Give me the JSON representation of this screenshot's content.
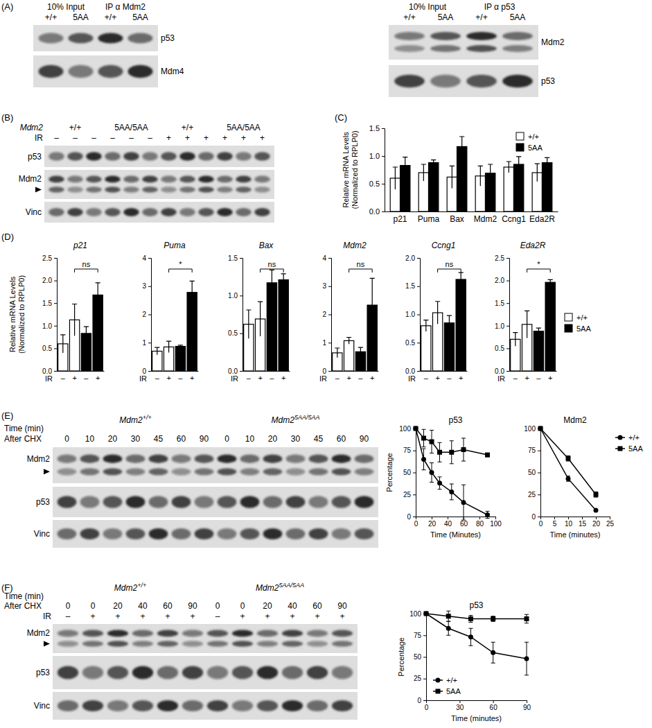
{
  "panel_labels": [
    "(A)",
    "(B)",
    "(C)",
    "(D)",
    "(E)",
    "(F)"
  ],
  "blots": [
    {
      "groups": [
        {
          "label": "10% Input",
          "lanes": [
            "+/+",
            "5AA"
          ]
        },
        {
          "label": "IP α Mdm2",
          "lanes": [
            "+/+",
            "5AA"
          ]
        }
      ],
      "rows": [
        "p53",
        "Mdm4"
      ]
    },
    {
      "groups": [
        {
          "label": "10% Input",
          "lanes": [
            "+/+",
            "5AA"
          ]
        },
        {
          "label": "IP α p53",
          "lanes": [
            "+/+",
            "5AA"
          ]
        }
      ],
      "rows": [
        "Mdm2",
        "p53"
      ]
    },
    {
      "title": "Mdm2",
      "groups": [
        {
          "label": "+/+",
          "lanes": [
            "–",
            "–",
            "–"
          ]
        },
        {
          "label": "5AA/5AA",
          "lanes": [
            "–",
            "–",
            "–"
          ]
        },
        {
          "label": "+/+",
          "lanes": [
            "+",
            "+",
            "+"
          ]
        },
        {
          "label": "5AA/5AA",
          "lanes": [
            "+",
            "+",
            "+"
          ]
        }
      ],
      "lane_label": "IR",
      "rows": [
        "p53",
        "Mdm2",
        "Vinc"
      ]
    },
    {
      "groups": [
        {
          "label": "Mdm2",
          "superscript": "+/+",
          "lanes": [
            "0",
            "10",
            "20",
            "30",
            "45",
            "60",
            "90"
          ]
        },
        {
          "label": "Mdm2",
          "superscript": "5AA/5AA",
          "lanes": [
            "0",
            "10",
            "20",
            "30",
            "45",
            "60",
            "90"
          ]
        }
      ],
      "lane_label": [
        "Time (min)",
        "After CHX"
      ],
      "rows": [
        "Mdm2",
        "p53",
        "Vinc"
      ]
    },
    {
      "groups": [
        {
          "label": "Mdm2",
          "superscript": "+/+",
          "lanes": [
            "0",
            "0",
            "20",
            "40",
            "60",
            "90"
          ],
          "ir": [
            "–",
            "+",
            "+",
            "+",
            "+",
            "+"
          ]
        },
        {
          "label": "Mdm2",
          "superscript": "5AA/5AA",
          "lanes": [
            "0",
            "0",
            "20",
            "40",
            "60",
            "90"
          ],
          "ir": [
            "–",
            "+",
            "+",
            "+",
            "+",
            "+"
          ]
        }
      ],
      "lane_label": [
        "Time (min)",
        "After CHX"
      ],
      "ir_label": "IR",
      "rows": [
        "Mdm2",
        "p53",
        "Vinc"
      ]
    }
  ],
  "chart_data": [
    {
      "type": "bar",
      "categories": [
        "p21",
        "Puma",
        "Bax",
        "Mdm2",
        "Ccng1",
        "Eda2R"
      ],
      "y_label": [
        "Relative mRNA Levels",
        "(Normalized to RPLP0)"
      ],
      "ylim": [
        0,
        1.5
      ],
      "yticks": [
        {
          "value": 0,
          "label": "0.0"
        },
        0.5,
        {
          "value": 1,
          "label": "1.0"
        },
        1.5
      ],
      "legend": "upper right",
      "series": [
        {
          "name": "+/+",
          "color": "#ffffff",
          "values": [
            0.6,
            0.7,
            0.62,
            0.64,
            0.8,
            0.7
          ],
          "errors": [
            0.2,
            0.15,
            0.2,
            0.18,
            0.1,
            0.16
          ]
        },
        {
          "name": "5AA",
          "color": "#000000",
          "values": [
            0.83,
            0.88,
            1.17,
            0.69,
            0.85,
            0.88
          ],
          "errors": [
            0.15,
            0.05,
            0.18,
            0.16,
            0.14,
            0.09
          ]
        }
      ]
    },
    {
      "type": "bar",
      "title": "p21",
      "categories": [
        "–",
        "+",
        "–",
        "+"
      ],
      "x_label": "IR",
      "y_label": [
        "Relative mRNA Levels",
        "(Normalized to RPLP0)"
      ],
      "ylim": [
        0,
        2.5
      ],
      "yticks": [
        {
          "value": 0,
          "label": "0.0"
        },
        0.5,
        {
          "value": 1,
          "label": "1.0"
        },
        1.5,
        {
          "value": 2,
          "label": "2.0"
        },
        2.5
      ],
      "annotation": "ns",
      "series": [
        {
          "color": "#ffffff",
          "values": [
            0.6,
            1.13,
            null,
            null
          ],
          "errors": [
            0.2,
            0.35,
            null,
            null
          ]
        },
        {
          "color": "#000000",
          "values": [
            null,
            null,
            0.83,
            1.68
          ],
          "errors": [
            null,
            null,
            0.15,
            0.27
          ]
        }
      ]
    },
    {
      "type": "bar",
      "title": "Puma",
      "categories": [
        "–",
        "+",
        "–",
        "+"
      ],
      "x_label": "IR",
      "ylim": [
        0,
        4
      ],
      "yticks": [
        0,
        1,
        2,
        3,
        4
      ],
      "annotation": "*",
      "series": [
        {
          "color": "#ffffff",
          "values": [
            0.7,
            0.85,
            null,
            null
          ],
          "errors": [
            0.13,
            0.2,
            null,
            null
          ]
        },
        {
          "color": "#000000",
          "values": [
            null,
            null,
            0.87,
            2.78
          ],
          "errors": [
            null,
            null,
            0.04,
            0.4
          ]
        }
      ]
    },
    {
      "type": "bar",
      "title": "Bax",
      "categories": [
        "–",
        "+",
        "–",
        "+"
      ],
      "x_label": "IR",
      "ylim": [
        0,
        1.5
      ],
      "yticks": [
        {
          "value": 0,
          "label": "0.0"
        },
        0.5,
        {
          "value": 1,
          "label": "1.0"
        },
        1.5
      ],
      "annotation": "ns",
      "series": [
        {
          "color": "#ffffff",
          "values": [
            0.62,
            0.69,
            null,
            null
          ],
          "errors": [
            0.19,
            0.23,
            null,
            null
          ]
        },
        {
          "color": "#000000",
          "values": [
            null,
            null,
            1.17,
            1.21
          ],
          "errors": [
            null,
            null,
            0.17,
            0.08
          ]
        }
      ]
    },
    {
      "type": "bar",
      "title": "Mdm2",
      "categories": [
        "–",
        "+",
        "–",
        "+"
      ],
      "x_label": "IR",
      "ylim": [
        0,
        4
      ],
      "yticks": [
        0,
        1,
        2,
        3,
        4
      ],
      "annotation": "ns",
      "series": [
        {
          "color": "#ffffff",
          "values": [
            0.64,
            1.07,
            null,
            null
          ],
          "errors": [
            0.17,
            0.12,
            null,
            null
          ]
        },
        {
          "color": "#000000",
          "values": [
            null,
            null,
            0.68,
            2.33
          ],
          "errors": [
            null,
            null,
            0.15,
            0.95
          ]
        }
      ]
    },
    {
      "type": "bar",
      "title": "Ccng1",
      "categories": [
        "–",
        "+",
        "–",
        "+"
      ],
      "x_label": "IR",
      "ylim": [
        0,
        2
      ],
      "yticks": [
        {
          "value": 0,
          "label": "0.0"
        },
        0.5,
        {
          "value": 1,
          "label": "1.0"
        },
        1.5,
        {
          "value": 2,
          "label": "2.0"
        }
      ],
      "annotation": "ns",
      "series": [
        {
          "color": "#ffffff",
          "values": [
            0.8,
            1.03,
            null,
            null
          ],
          "errors": [
            0.1,
            0.2,
            null,
            null
          ]
        },
        {
          "color": "#000000",
          "values": [
            null,
            null,
            0.85,
            1.62
          ],
          "errors": [
            null,
            null,
            0.13,
            0.12
          ]
        }
      ]
    },
    {
      "type": "bar",
      "title": "Eda2R",
      "categories": [
        "–",
        "+",
        "–",
        "+"
      ],
      "x_label": "IR",
      "ylim": [
        0,
        2.5
      ],
      "yticks": [
        {
          "value": 0,
          "label": "0.0"
        },
        0.5,
        {
          "value": 1,
          "label": "1.0"
        },
        1.5,
        {
          "value": 2,
          "label": "2.0"
        },
        2.5
      ],
      "annotation": "*",
      "legend": "right",
      "series": [
        {
          "name": "+/+",
          "color": "#ffffff",
          "values": [
            0.7,
            1.03,
            null,
            null
          ],
          "errors": [
            0.15,
            0.3,
            null,
            null
          ]
        },
        {
          "name": "5AA",
          "color": "#000000",
          "values": [
            null,
            null,
            0.88,
            1.96
          ],
          "errors": [
            null,
            null,
            0.07,
            0.06
          ]
        }
      ]
    },
    {
      "type": "line",
      "title": "p53",
      "x_label": "Time (Minutes)",
      "y_label": "Percentage",
      "x": [
        0,
        10,
        20,
        30,
        45,
        60,
        90
      ],
      "xlim": [
        0,
        100
      ],
      "xticks": [
        0,
        20,
        40,
        60,
        80,
        100
      ],
      "ylim": [
        0,
        100
      ],
      "yticks": [
        0,
        25,
        50,
        75,
        100
      ],
      "series": [
        {
          "color": "#000000",
          "marker": "circle",
          "values": [
            100,
            65,
            50,
            38,
            28,
            16,
            2
          ],
          "errors": [
            0,
            12,
            11,
            7,
            9,
            20,
            4
          ]
        },
        {
          "color": "#000000",
          "marker": "square",
          "values": [
            100,
            89,
            85,
            73,
            73,
            76,
            70
          ],
          "errors": [
            0,
            10,
            13,
            11,
            13,
            13,
            2
          ]
        }
      ]
    },
    {
      "type": "line",
      "title": "Mdm2",
      "x_label": "Time (minutes)",
      "x": [
        0,
        10,
        20
      ],
      "xlim": [
        0,
        25
      ],
      "xticks": [
        0,
        5,
        10,
        15,
        20,
        25
      ],
      "ylim": [
        0,
        100
      ],
      "yticks": [
        0,
        25,
        50,
        75,
        100
      ],
      "legend": "right",
      "series": [
        {
          "name": "+/+",
          "color": "#000000",
          "marker": "circle",
          "values": [
            100,
            43,
            7
          ],
          "errors": [
            0,
            3,
            1
          ]
        },
        {
          "name": "5AA",
          "color": "#000000",
          "marker": "square",
          "values": [
            100,
            66,
            25
          ],
          "errors": [
            0,
            3,
            3
          ]
        }
      ]
    },
    {
      "type": "line",
      "title": "p53",
      "x_label": "Time (minutes)",
      "y_label": "Percentage",
      "x": [
        0,
        20,
        40,
        60,
        90
      ],
      "xlim": [
        0,
        90
      ],
      "xticks": [
        0,
        30,
        60,
        90
      ],
      "ylim": [
        0,
        100
      ],
      "yticks": [
        0,
        25,
        50,
        75,
        100
      ],
      "legend": "lower left",
      "series": [
        {
          "name": "+/+",
          "color": "#000000",
          "marker": "circle",
          "values": [
            100,
            83,
            73,
            55,
            48
          ],
          "errors": [
            0,
            8,
            10,
            12,
            19
          ]
        },
        {
          "name": "5AA",
          "color": "#000000",
          "marker": "square",
          "values": [
            100,
            97,
            94,
            94,
            94
          ],
          "errors": [
            0,
            6,
            4,
            3,
            5
          ]
        }
      ]
    }
  ]
}
